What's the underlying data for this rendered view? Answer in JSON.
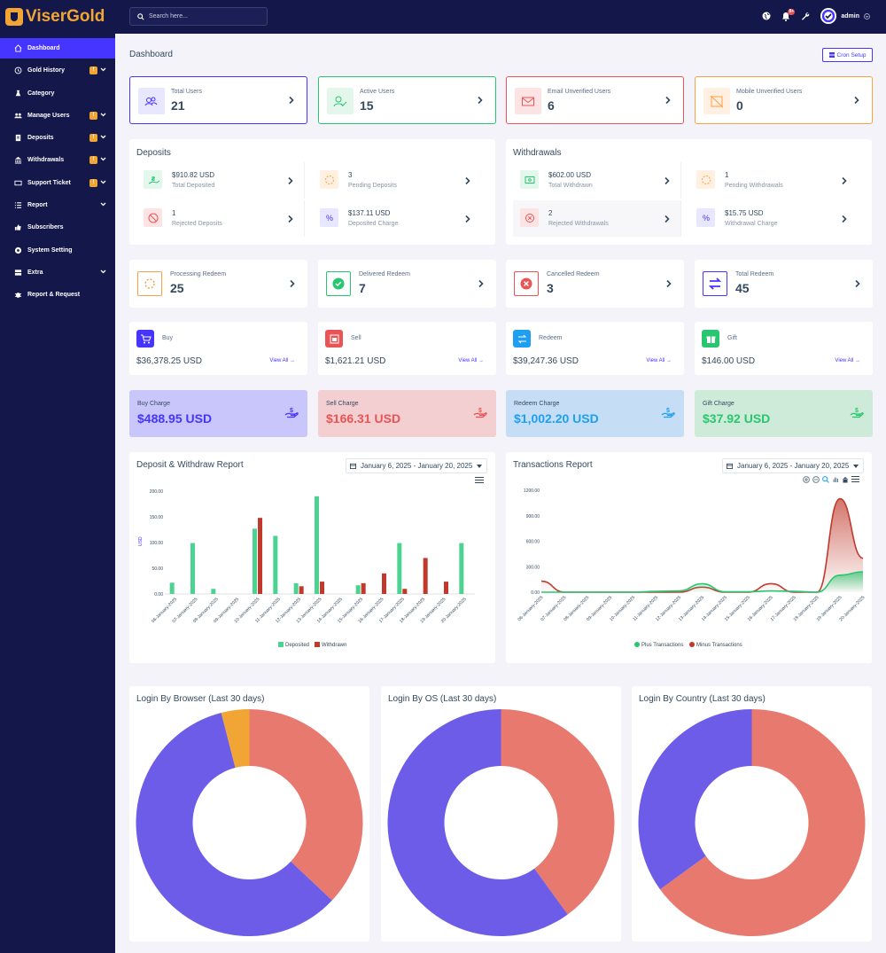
{
  "brand": {
    "name_gold": "Viser",
    "name_white": "Gold"
  },
  "search": {
    "placeholder": "Search here..."
  },
  "user": {
    "name": "admin",
    "notification_count": "9+"
  },
  "sidebar": {
    "items": [
      {
        "label": "Dashboard",
        "icon": "home-icon",
        "active": true
      },
      {
        "label": "Gold History",
        "icon": "history-icon",
        "badge": "!",
        "chevron": true
      },
      {
        "label": "Category",
        "icon": "category-icon"
      },
      {
        "label": "Manage Users",
        "icon": "users-icon",
        "badge": "!",
        "chevron": true
      },
      {
        "label": "Deposits",
        "icon": "deposit-icon",
        "badge": "!",
        "chevron": true
      },
      {
        "label": "Withdrawals",
        "icon": "bank-icon",
        "badge": "!",
        "chevron": true
      },
      {
        "label": "Support Ticket",
        "icon": "ticket-icon",
        "badge": "!",
        "chevron": true
      },
      {
        "label": "Report",
        "icon": "list-icon",
        "chevron": true
      },
      {
        "label": "Subscribers",
        "icon": "thumbs-up-icon"
      },
      {
        "label": "System Setting",
        "icon": "gear-icon"
      },
      {
        "label": "Extra",
        "icon": "server-icon",
        "chevron": true
      },
      {
        "label": "Report & Request",
        "icon": "bug-icon"
      }
    ]
  },
  "page": {
    "title": "Dashboard",
    "cron_label": "Cron Setup"
  },
  "user_stats": [
    {
      "label": "Total Users",
      "value": "21",
      "color": "#4634ff",
      "bg": "#e9e7ff"
    },
    {
      "label": "Active Users",
      "value": "15",
      "color": "#28c76f",
      "bg": "#e3f7ec"
    },
    {
      "label": "Email Unverified Users",
      "value": "6",
      "color": "#ea5455",
      "bg": "#fce4e4"
    },
    {
      "label": "Mobile Unverified Users",
      "value": "0",
      "color": "#ff9f43",
      "bg": "#fff0e1"
    }
  ],
  "deposits": {
    "title": "Deposits",
    "items": [
      {
        "value": "$910.82 USD",
        "label": "Total Deposited",
        "color": "#28c76f",
        "bg": "#e3f7ec"
      },
      {
        "value": "3",
        "label": "Pending Deposits",
        "color": "#ff9f43",
        "bg": "#fff0e1"
      },
      {
        "value": "1",
        "label": "Rejected Deposits",
        "color": "#ea5455",
        "bg": "#fce4e4"
      },
      {
        "value": "$137.11 USD",
        "label": "Deposited Charge",
        "color": "#4634ff",
        "bg": "#e9e7ff"
      }
    ]
  },
  "withdrawals": {
    "title": "Withdrawals",
    "items": [
      {
        "value": "$602.00 USD",
        "label": "Total Withdrawn",
        "color": "#28c76f",
        "bg": "#e3f7ec"
      },
      {
        "value": "1",
        "label": "Pending Withdrawals",
        "color": "#ff9f43",
        "bg": "#fff0e1"
      },
      {
        "value": "2",
        "label": "Rejected Withdrawals",
        "color": "#ea5455",
        "bg": "#fce4e4"
      },
      {
        "value": "$15.75 USD",
        "label": "Withdrawal Charge",
        "color": "#4634ff",
        "bg": "#e9e7ff"
      }
    ]
  },
  "redeem": [
    {
      "label": "Processing Redeem",
      "value": "25",
      "color": "#ff9f43"
    },
    {
      "label": "Delivered Redeem",
      "value": "7",
      "color": "#28c76f"
    },
    {
      "label": "Cancelled Redeem",
      "value": "3",
      "color": "#ea5455"
    },
    {
      "label": "Total Redeem",
      "value": "45",
      "color": "#4634ff"
    }
  ],
  "wallets": [
    {
      "label": "Buy",
      "value": "$36,378.25 USD",
      "link": "View All",
      "color": "#4634ff",
      "icon": "cart-icon"
    },
    {
      "label": "Sell",
      "value": "$1,621.21 USD",
      "link": "View All",
      "color": "#ea5455",
      "icon": "sell-icon"
    },
    {
      "label": "Redeem",
      "value": "$39,247.36 USD",
      "link": "View All",
      "color": "#1e9ff2",
      "icon": "exchange-icon"
    },
    {
      "label": "Gift",
      "value": "$146.00 USD",
      "link": "View All",
      "color": "#28c76f",
      "icon": "gift-icon"
    }
  ],
  "charges": [
    {
      "label": "Buy Charge",
      "value": "$488.95 USD",
      "color": "#4634ff",
      "bg": "#c9c6fb"
    },
    {
      "label": "Sell Charge",
      "value": "$166.31 USD",
      "color": "#ea5455",
      "bg": "#f3cfd1"
    },
    {
      "label": "Redeem Charge",
      "value": "$1,002.20 USD",
      "color": "#1e9ff2",
      "bg": "#c5def6"
    },
    {
      "label": "Gift Charge",
      "value": "$37.92 USD",
      "color": "#28c76f",
      "bg": "#cdebd8"
    }
  ],
  "deposit_report": {
    "title": "Deposit & Withdraw Report",
    "date_range": "January 6, 2025 - January 20, 2025"
  },
  "transactions_report": {
    "title": "Transactions Report",
    "date_range": "January 6, 2025 - January 20, 2025"
  },
  "login_charts": [
    {
      "title": "Login By Browser (Last 30 days)"
    },
    {
      "title": "Login By OS (Last 30 days)"
    },
    {
      "title": "Login By Country (Last 30 days)"
    }
  ],
  "chart_data": [
    {
      "type": "bar",
      "title": "Deposit & Withdraw Report",
      "ylabel": "USD",
      "ylim": [
        0,
        200
      ],
      "yticks": [
        "0.00",
        "50.00",
        "100.00",
        "150.00",
        "200.00"
      ],
      "categories": [
        "06-January-2025",
        "07-January-2025",
        "08-January-2025",
        "09-January-2025",
        "10-January-2025",
        "11-January-2025",
        "12-January-2025",
        "13-January-2025",
        "14-January-2025",
        "15-January-2025",
        "16-January-2025",
        "17-January-2025",
        "18-January-2025",
        "19-January-2025",
        "20-January-2025"
      ],
      "series": [
        {
          "name": "Deposited",
          "color": "#4dd391",
          "values": [
            22,
            99,
            10,
            0,
            127,
            113,
            21,
            190,
            0,
            17,
            0,
            99,
            0,
            0,
            99
          ]
        },
        {
          "name": "Withdrawn",
          "color": "#c0392b",
          "values": [
            0,
            0,
            0,
            0,
            148,
            0,
            15,
            24,
            0,
            21,
            40,
            10,
            70,
            24,
            0
          ]
        }
      ],
      "legend": "bottom"
    },
    {
      "type": "area",
      "title": "Transactions Report",
      "ylim": [
        0,
        1200
      ],
      "yticks": [
        "0.00",
        "300.00",
        "600.00",
        "900.00",
        "1200.00"
      ],
      "categories": [
        "06-January-2025",
        "07-January-2025",
        "08-January-2025",
        "09-January-2025",
        "10-January-2025",
        "11-January-2025",
        "12-January-2025",
        "13-January-2025",
        "14-January-2025",
        "15-January-2025",
        "16-January-2025",
        "17-January-2025",
        "18-January-2025",
        "19-January-2025",
        "20-January-2025"
      ],
      "series": [
        {
          "name": "Plus Transactions",
          "color": "#28c76f",
          "values": [
            0,
            0,
            0,
            0,
            0,
            10,
            15,
            100,
            5,
            5,
            15,
            10,
            0,
            200,
            240
          ]
        },
        {
          "name": "Minus Transactions",
          "color": "#c0392b",
          "values": [
            130,
            0,
            0,
            0,
            0,
            0,
            0,
            60,
            0,
            0,
            100,
            0,
            0,
            1100,
            400
          ]
        }
      ],
      "legend": "bottom"
    },
    {
      "type": "pie",
      "title": "Login By Browser (Last 30 days)",
      "series": [
        {
          "values": [
            37,
            59,
            4
          ],
          "colors": [
            "#e8796f",
            "#6c5ce7",
            "#f0a534"
          ]
        }
      ]
    },
    {
      "type": "pie",
      "title": "Login By OS (Last 30 days)",
      "series": [
        {
          "values": [
            40,
            60
          ],
          "colors": [
            "#e8796f",
            "#6c5ce7"
          ]
        }
      ]
    },
    {
      "type": "pie",
      "title": "Login By Country (Last 30 days)",
      "series": [
        {
          "values": [
            65,
            35
          ],
          "colors": [
            "#e8796f",
            "#6c5ce7"
          ]
        }
      ]
    }
  ]
}
